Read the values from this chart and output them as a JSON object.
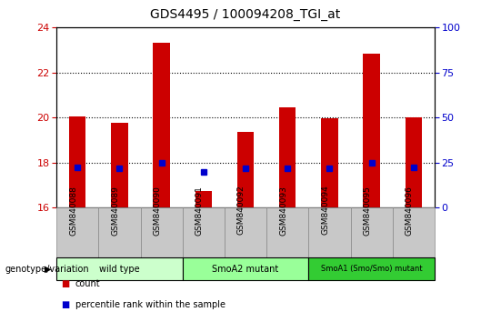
{
  "title": "GDS4495 / 100094208_TGI_at",
  "samples": [
    "GSM840088",
    "GSM840089",
    "GSM840090",
    "GSM840091",
    "GSM840092",
    "GSM840093",
    "GSM840094",
    "GSM840095",
    "GSM840096"
  ],
  "counts": [
    20.05,
    19.75,
    23.3,
    16.75,
    19.35,
    20.45,
    19.95,
    22.85,
    20.0
  ],
  "percentile_ranks": [
    22.5,
    22.0,
    25.0,
    20.0,
    22.0,
    22.0,
    22.0,
    25.0,
    22.5
  ],
  "ylim_left": [
    16,
    24
  ],
  "ylim_right": [
    0,
    100
  ],
  "yticks_left": [
    16,
    18,
    20,
    22,
    24
  ],
  "yticks_right": [
    0,
    25,
    50,
    75,
    100
  ],
  "bar_color": "#cc0000",
  "dot_color": "#0000cc",
  "bar_bottom": 16,
  "groups": [
    {
      "label": "wild type",
      "start": 0,
      "end": 3,
      "color": "#ccffcc"
    },
    {
      "label": "SmoA2 mutant",
      "start": 3,
      "end": 6,
      "color": "#99ff99"
    },
    {
      "label": "SmoA1 (Smo/Smo) mutant",
      "start": 6,
      "end": 9,
      "color": "#33cc33"
    }
  ],
  "legend_items": [
    {
      "label": "count",
      "color": "#cc0000"
    },
    {
      "label": "percentile rank within the sample",
      "color": "#0000cc"
    }
  ],
  "tick_label_color_left": "#cc0000",
  "tick_label_color_right": "#0000cc",
  "group_label": "genotype/variation",
  "grid_yticks": [
    18,
    20,
    22
  ],
  "background_color": "#ffffff",
  "plot_bg_color": "#ffffff",
  "tick_bg_color": "#c8c8c8"
}
